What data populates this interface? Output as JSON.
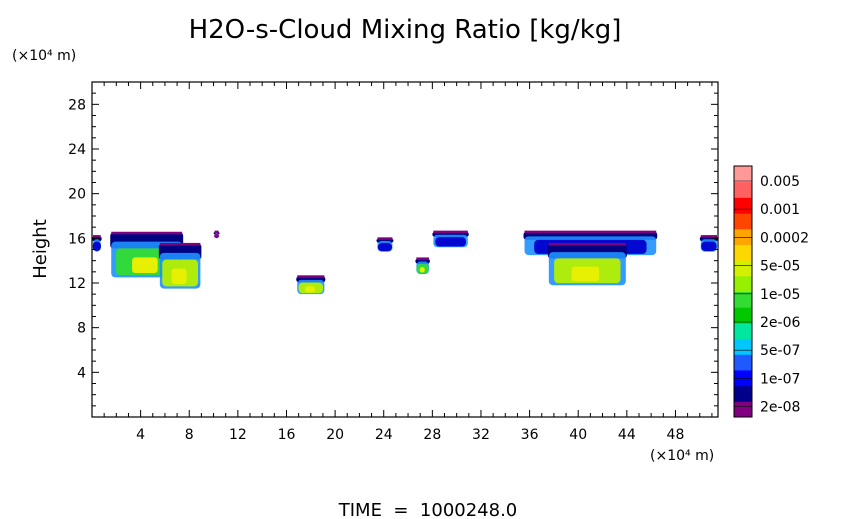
{
  "chart_data": {
    "type": "heatmap",
    "title": "H2O-s-Cloud Mixing Ratio [kg/kg]",
    "ylabel": "Height",
    "y_unit": "(×10⁴ m)",
    "x_unit": "(×10⁴ m)",
    "xlim": [
      0,
      51.5
    ],
    "ylim": [
      0,
      30
    ],
    "x_ticks": [
      4,
      8,
      12,
      16,
      20,
      24,
      28,
      32,
      36,
      40,
      44,
      48
    ],
    "y_ticks": [
      4,
      8,
      12,
      16,
      20,
      24,
      28
    ],
    "footer": "TIME  =  1000248.0",
    "colorbar": {
      "labels": [
        "0.005",
        "0.001",
        "0.0002",
        "5e-05",
        "1e-05",
        "2e-06",
        "5e-07",
        "1e-07",
        "2e-08"
      ],
      "colors": [
        "#800080",
        "#00008b",
        "#0000ff",
        "#1e5aff",
        "#00c8ff",
        "#00e8a0",
        "#00c800",
        "#32dc32",
        "#96f000",
        "#d2f000",
        "#ffd700",
        "#ffa500",
        "#ff4500",
        "#ff0000",
        "#ff6060",
        "#ff9999"
      ]
    },
    "cloud_regions": [
      {
        "x": [
          0.0,
          0.8
        ],
        "y": [
          14.8,
          16.2
        ],
        "level": "1e-07"
      },
      {
        "x": [
          1.5,
          7.5
        ],
        "y": [
          12.5,
          16.5
        ],
        "level": "1e-05"
      },
      {
        "x": [
          5.5,
          9.0
        ],
        "y": [
          11.5,
          15.5
        ],
        "level": "5e-05"
      },
      {
        "x": [
          10.0,
          10.5
        ],
        "y": [
          16.0,
          16.6
        ],
        "level": "2e-08"
      },
      {
        "x": [
          16.8,
          19.2
        ],
        "y": [
          11.0,
          12.6
        ],
        "level": "5e-05"
      },
      {
        "x": [
          23.4,
          24.8
        ],
        "y": [
          14.8,
          16.0
        ],
        "level": "1e-07"
      },
      {
        "x": [
          26.6,
          27.8
        ],
        "y": [
          12.8,
          14.2
        ],
        "level": "1e-05"
      },
      {
        "x": [
          28.0,
          31.0
        ],
        "y": [
          15.2,
          16.6
        ],
        "level": "1e-07"
      },
      {
        "x": [
          35.5,
          46.5
        ],
        "y": [
          14.5,
          16.6
        ],
        "level": "1e-07"
      },
      {
        "x": [
          37.5,
          44.0
        ],
        "y": [
          11.8,
          15.5
        ],
        "level": "5e-05"
      },
      {
        "x": [
          50.0,
          51.5
        ],
        "y": [
          14.8,
          16.2
        ],
        "level": "1e-07"
      }
    ]
  }
}
